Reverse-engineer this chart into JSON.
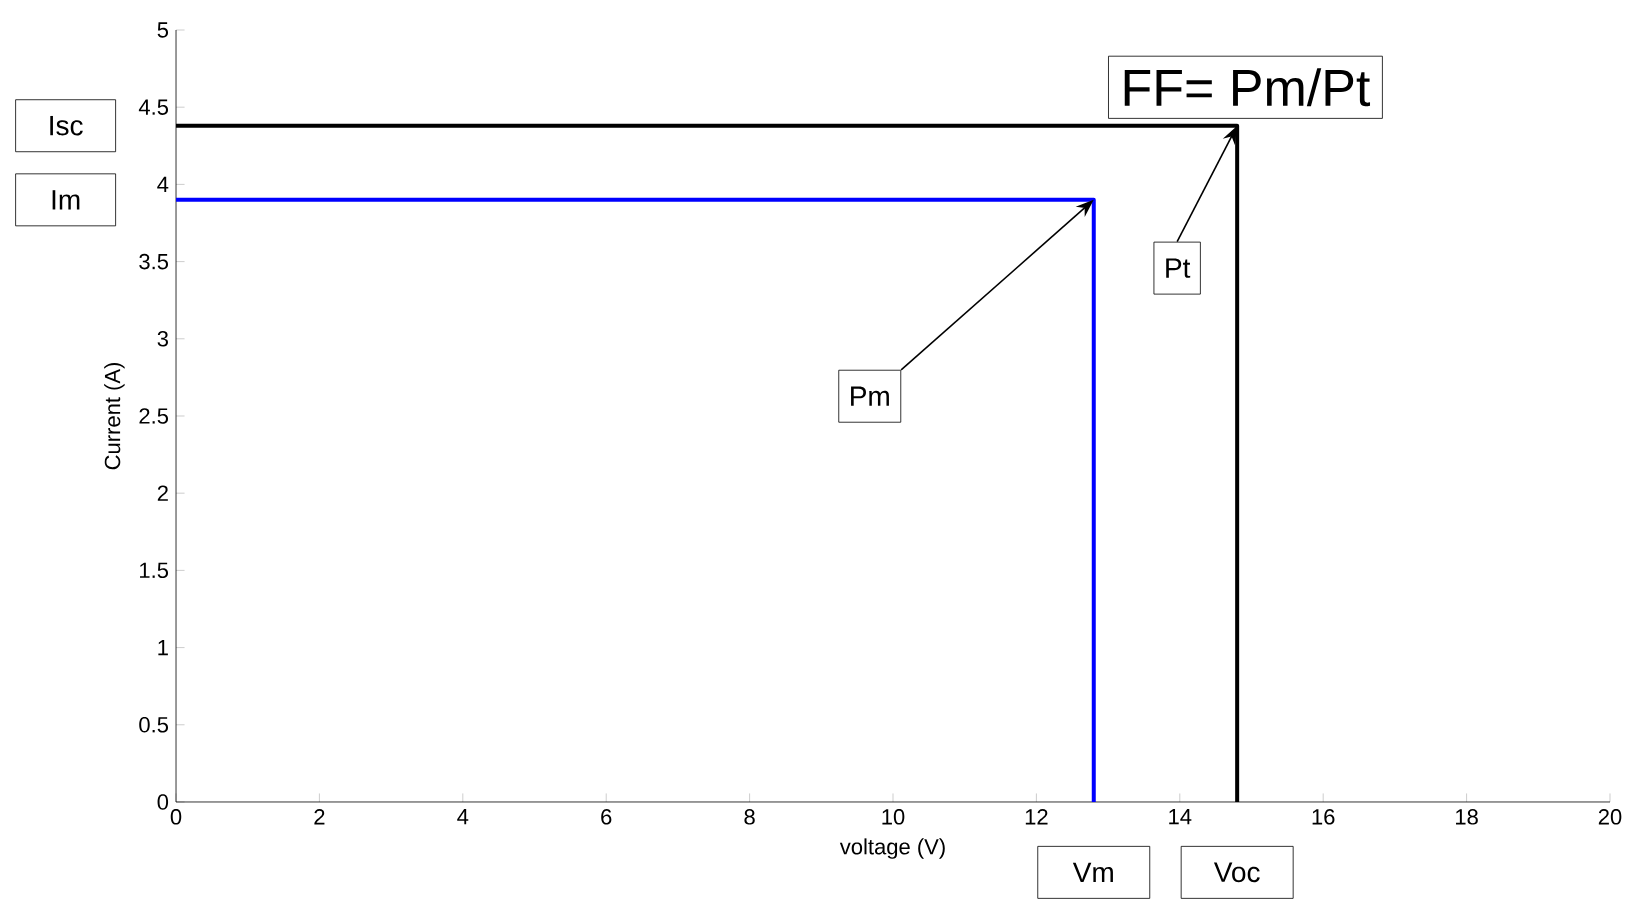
{
  "chart_data": {
    "type": "line",
    "xlabel": "voltage (V)",
    "ylabel": "Current (A)",
    "xlim": [
      0,
      20
    ],
    "ylim": [
      0,
      5
    ],
    "xticks": [
      0,
      2,
      4,
      6,
      8,
      10,
      12,
      14,
      16,
      18,
      20
    ],
    "yticks": [
      0,
      0.5,
      1,
      1.5,
      2,
      2.5,
      3,
      3.5,
      4,
      4.5,
      5
    ],
    "series": [
      {
        "color": "#0000ff",
        "x": [
          0,
          12.8,
          12.8
        ],
        "values": [
          3.9,
          3.9,
          0
        ]
      },
      {
        "color": "#000000",
        "x": [
          0,
          14.8,
          14.8
        ],
        "values": [
          4.38,
          4.38,
          0
        ]
      }
    ],
    "annotations": [
      "Isc",
      "Im",
      {
        "text": "Pm",
        "x": 12.8,
        "y": 3.9
      },
      {
        "text": "Pt",
        "x": 14.8,
        "y": 4.38
      },
      "Vm",
      "Voc",
      "FF= Pm/Pt"
    ]
  }
}
